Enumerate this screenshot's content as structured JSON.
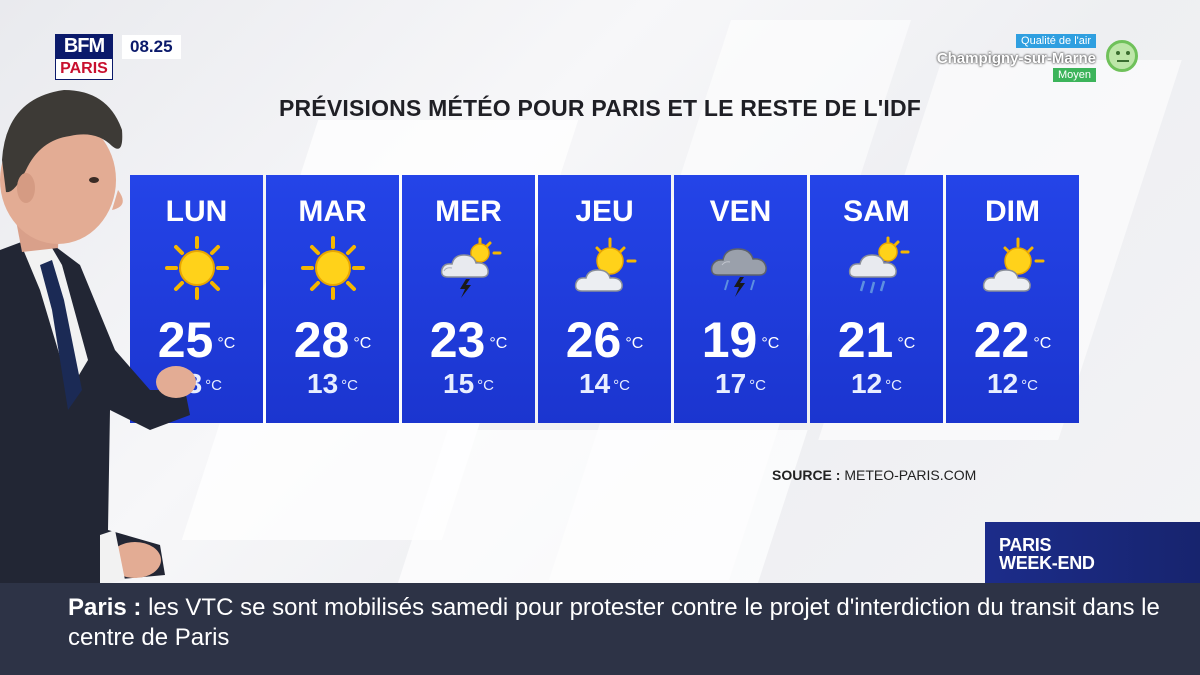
{
  "channel": {
    "brand": "BFM",
    "city": "PARIS",
    "time": "08.25"
  },
  "air_quality": {
    "label": "Qualité de l'air",
    "location": "Champigny-sur-Marne",
    "level": "Moyen"
  },
  "title": "PRÉVISIONS MÉTÉO POUR PARIS ET LE RESTE DE L'IDF",
  "temp_unit": "°C",
  "days": [
    {
      "name": "LUN",
      "icon": "sun-icon",
      "max": "25",
      "min": "13"
    },
    {
      "name": "MAR",
      "icon": "sun-icon",
      "max": "28",
      "min": "13"
    },
    {
      "name": "MER",
      "icon": "storm-sun-icon",
      "max": "23",
      "min": "15"
    },
    {
      "name": "JEU",
      "icon": "partly-cloudy-icon",
      "max": "26",
      "min": "14"
    },
    {
      "name": "VEN",
      "icon": "thunderstorm-icon",
      "max": "19",
      "min": "17"
    },
    {
      "name": "SAM",
      "icon": "rain-sun-icon",
      "max": "21",
      "min": "12"
    },
    {
      "name": "DIM",
      "icon": "partly-cloudy-icon",
      "max": "22",
      "min": "12"
    }
  ],
  "source": {
    "label": "SOURCE :",
    "value": "METEO-PARIS.COM"
  },
  "program": {
    "line1": "PARIS",
    "line2": "WEEK-END"
  },
  "ticker": {
    "keyword": "Paris",
    "sep": ":",
    "text": "les VTC se sont mobilisés samedi pour protester contre le projet d'interdiction du transit dans le centre de Paris"
  },
  "colors": {
    "card": "#1f3fe0",
    "ticker": "#2d3346",
    "brand": "#0b1a6b"
  }
}
